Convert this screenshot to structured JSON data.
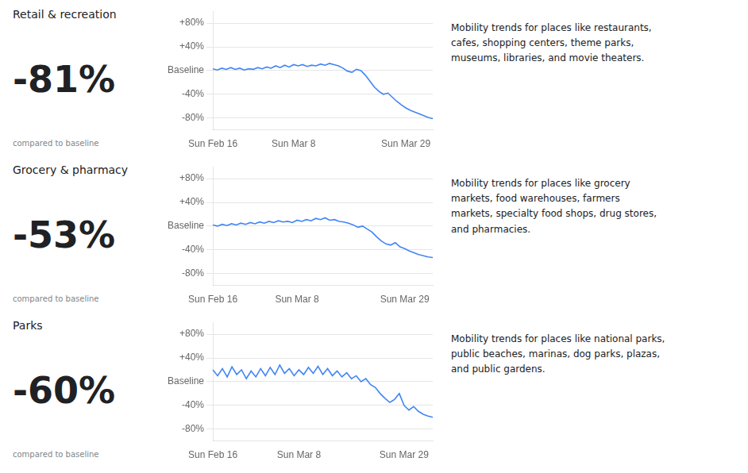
{
  "chart_data": [
    {
      "type": "line",
      "title": "Retail & recreation",
      "annotations": [
        "-81%",
        "compared to baseline",
        "Mobility trends for places like restaurants,\ncafes, shopping centers, theme parks,\nmuseums, libraries, and movie theaters."
      ],
      "categories": [
        "Sun Feb 16",
        null,
        null,
        null,
        null,
        null,
        null,
        null,
        null,
        null,
        null,
        null,
        null,
        null,
        null,
        null,
        null,
        null,
        "Sun Mar 8",
        null,
        null,
        null,
        null,
        null,
        null,
        null,
        null,
        null,
        null,
        null,
        null,
        null,
        null,
        null,
        null,
        null,
        null,
        null,
        null,
        null,
        null,
        null,
        null,
        "Sun Mar 29",
        null,
        null,
        null,
        null,
        null,
        null
      ],
      "series": [
        {
          "color": "#4285F4",
          "values": [
            3,
            1,
            4,
            2,
            5,
            2,
            4,
            1,
            3,
            2,
            5,
            3,
            6,
            4,
            8,
            5,
            9,
            6,
            10,
            8,
            10,
            7,
            9,
            8,
            11,
            9,
            12,
            10,
            8,
            4,
            -1,
            -3,
            2,
            0,
            -8,
            -18,
            -28,
            -35,
            -40,
            -38,
            -45,
            -52,
            -58,
            -63,
            -67,
            -70,
            -73,
            -76,
            -79,
            -81
          ]
        }
      ],
      "ylim": [
        -100,
        100
      ],
      "yticks": [
        {
          "value": -80,
          "label": "-80%"
        },
        {
          "value": -40,
          "label": "-40%"
        },
        {
          "value": 0,
          "label": "Baseline"
        },
        {
          "value": 40,
          "label": "+40%"
        },
        {
          "value": 80,
          "label": "+80%"
        }
      ],
      "grid": true
    },
    {
      "type": "line",
      "title": "Grocery & pharmacy",
      "annotations": [
        "-53%",
        "compared to baseline",
        "Mobility trends for places like grocery\nmarkets, food warehouses, farmers\nmarkets, specialty food shops, drug stores,\nand pharmacies."
      ],
      "categories": [
        "Sun Feb 16",
        null,
        null,
        null,
        null,
        null,
        null,
        null,
        null,
        null,
        null,
        null,
        null,
        null,
        null,
        null,
        null,
        null,
        "Sun Mar 8",
        null,
        null,
        null,
        null,
        null,
        null,
        null,
        null,
        null,
        null,
        null,
        null,
        null,
        null,
        null,
        null,
        null,
        null,
        null,
        null,
        null,
        null,
        "Sun Mar 29",
        null,
        null,
        null,
        null,
        null,
        null
      ],
      "series": [
        {
          "color": "#4285F4",
          "values": [
            2,
            0,
            3,
            1,
            4,
            2,
            5,
            3,
            6,
            4,
            7,
            5,
            8,
            6,
            9,
            7,
            8,
            6,
            10,
            8,
            11,
            9,
            13,
            11,
            14,
            10,
            11,
            8,
            7,
            5,
            2,
            -2,
            0,
            -5,
            -10,
            -18,
            -25,
            -30,
            -32,
            -28,
            -35,
            -38,
            -42,
            -45,
            -48,
            -50,
            -52,
            -53
          ]
        }
      ],
      "ylim": [
        -100,
        100
      ],
      "yticks": [
        {
          "value": -80,
          "label": "-80%"
        },
        {
          "value": -40,
          "label": "-40%"
        },
        {
          "value": 0,
          "label": "Baseline"
        },
        {
          "value": 40,
          "label": "+40%"
        },
        {
          "value": 80,
          "label": "+80%"
        }
      ],
      "grid": true
    },
    {
      "type": "line",
      "title": "Parks",
      "annotations": [
        "-60%",
        "compared to baseline",
        "Mobility trends for places like national parks,\npublic beaches, marinas, dog parks, plazas,\nand public gardens."
      ],
      "categories": [
        "Sun Feb 16",
        null,
        null,
        null,
        null,
        null,
        null,
        null,
        null,
        null,
        null,
        null,
        null,
        null,
        null,
        null,
        null,
        null,
        "Sun Mar 8",
        null,
        null,
        null,
        null,
        null,
        null,
        null,
        null,
        null,
        null,
        null,
        null,
        null,
        null,
        null,
        null,
        null,
        null,
        null,
        null,
        null,
        "Sun Mar 29",
        null,
        null,
        null,
        null,
        null,
        null
      ],
      "series": [
        {
          "color": "#4285F4",
          "values": [
            20,
            10,
            22,
            8,
            25,
            12,
            20,
            5,
            18,
            8,
            22,
            10,
            24,
            12,
            28,
            14,
            22,
            10,
            20,
            12,
            24,
            14,
            26,
            12,
            22,
            10,
            18,
            8,
            15,
            5,
            10,
            0,
            5,
            -5,
            -10,
            -20,
            -28,
            -35,
            -30,
            -20,
            -40,
            -48,
            -42,
            -50,
            -55,
            -58,
            -60
          ]
        }
      ],
      "ylim": [
        -100,
        100
      ],
      "yticks": [
        {
          "value": -80,
          "label": "-80%"
        },
        {
          "value": -40,
          "label": "-40%"
        },
        {
          "value": 0,
          "label": "Baseline"
        },
        {
          "value": 40,
          "label": "+40%"
        },
        {
          "value": 80,
          "label": "+80%"
        }
      ],
      "grid": true
    }
  ]
}
